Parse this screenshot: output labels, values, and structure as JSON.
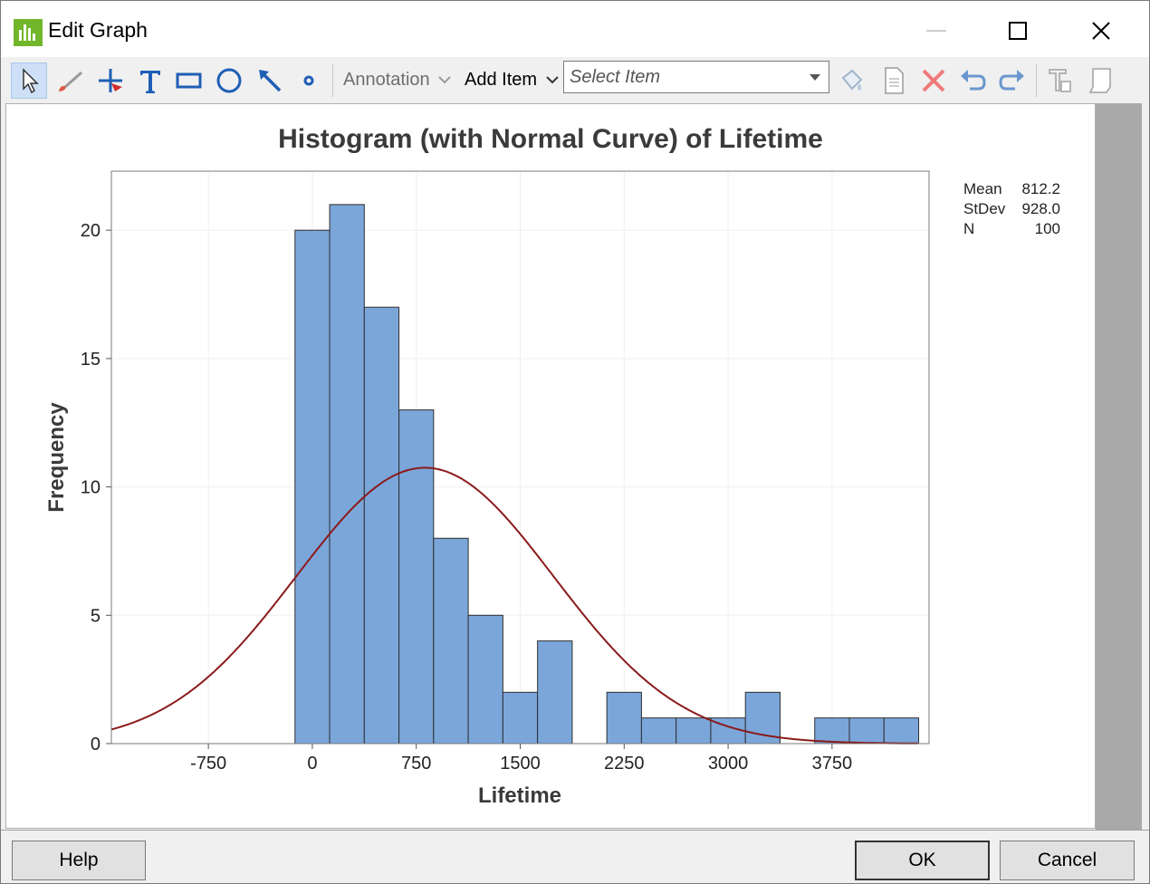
{
  "window": {
    "title": "Edit Graph"
  },
  "toolbar": {
    "annotation_label": "Annotation",
    "add_item_label": "Add Item",
    "select_item_placeholder": "Select Item"
  },
  "chart_data": {
    "type": "bar",
    "title": "Histogram (with Normal Curve) of Lifetime",
    "xlabel": "Lifetime",
    "ylabel": "Frequency",
    "xlim": [
      -1450,
      4450
    ],
    "ylim": [
      0,
      22.3
    ],
    "x_ticks": [
      -750,
      0,
      750,
      1500,
      2250,
      3000,
      3750
    ],
    "y_ticks": [
      0,
      5,
      10,
      15,
      20
    ],
    "bin_width": 250,
    "bins": [
      {
        "start": -125,
        "end": 125,
        "count": 20
      },
      {
        "start": 125,
        "end": 375,
        "count": 21
      },
      {
        "start": 375,
        "end": 625,
        "count": 17
      },
      {
        "start": 625,
        "end": 875,
        "count": 13
      },
      {
        "start": 875,
        "end": 1125,
        "count": 8
      },
      {
        "start": 1125,
        "end": 1375,
        "count": 5
      },
      {
        "start": 1375,
        "end": 1625,
        "count": 2
      },
      {
        "start": 1625,
        "end": 1875,
        "count": 4
      },
      {
        "start": 1875,
        "end": 2125,
        "count": 0
      },
      {
        "start": 2125,
        "end": 2375,
        "count": 2
      },
      {
        "start": 2375,
        "end": 2625,
        "count": 1
      },
      {
        "start": 2625,
        "end": 2875,
        "count": 1
      },
      {
        "start": 2875,
        "end": 3125,
        "count": 1
      },
      {
        "start": 3125,
        "end": 3375,
        "count": 2
      },
      {
        "start": 3375,
        "end": 3625,
        "count": 0
      },
      {
        "start": 3625,
        "end": 3875,
        "count": 1
      },
      {
        "start": 3875,
        "end": 4125,
        "count": 1
      },
      {
        "start": 4125,
        "end": 4375,
        "count": 1
      }
    ],
    "normal_curve": {
      "mean": 812.2,
      "stdev": 928.0,
      "n": 100
    },
    "stats": [
      {
        "label": "Mean",
        "value": "812.2"
      },
      {
        "label": "StDev",
        "value": "928.0"
      },
      {
        "label": "N",
        "value": "100"
      }
    ],
    "grid": true,
    "colors": {
      "bar": "#7ba6da",
      "bar_edge": "#2f2f2f",
      "curve": "#8b1a1a"
    }
  },
  "buttons": {
    "help": "Help",
    "ok": "OK",
    "cancel": "Cancel"
  }
}
